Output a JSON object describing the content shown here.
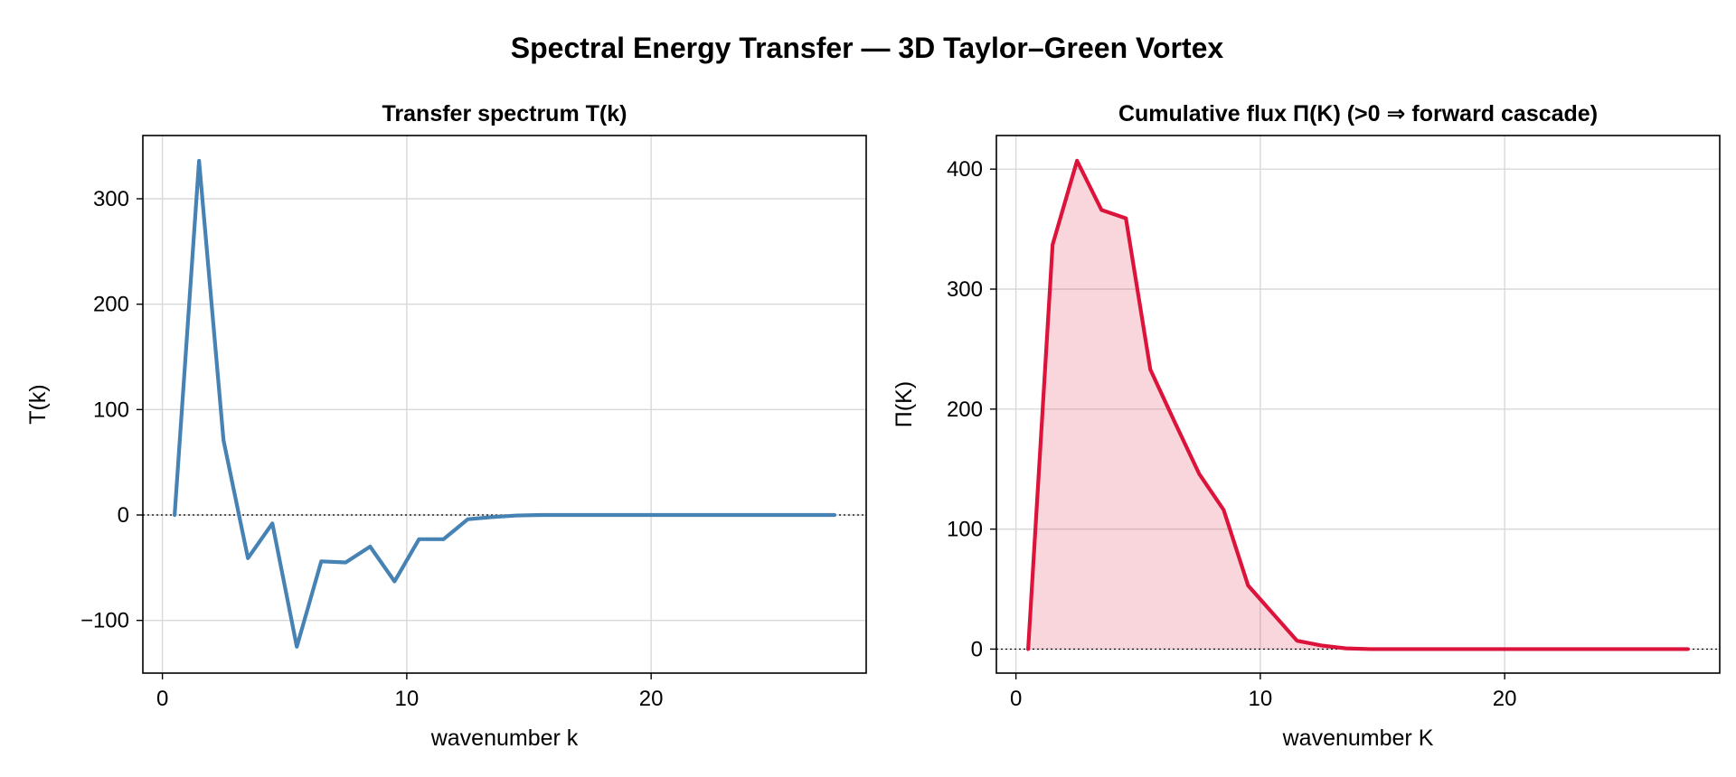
{
  "figure_title": "Spectral Energy Transfer — 3D Taylor–Green Vortex",
  "chart_data": [
    {
      "type": "line",
      "title": "Transfer spectrum T(k)",
      "xlabel": "wavenumber k",
      "ylabel": "T(k)",
      "xlim": [
        -0.8,
        28.8
      ],
      "ylim": [
        -150,
        360
      ],
      "xticks": [
        0,
        10,
        20
      ],
      "xtick_labels": [
        "0",
        "10",
        "20"
      ],
      "yticks": [
        -100,
        0,
        100,
        200,
        300
      ],
      "ytick_labels": [
        "−100",
        "0",
        "100",
        "200",
        "300"
      ],
      "grid": true,
      "zero_line": true,
      "series": [
        {
          "color": "#4682b4",
          "fill": false,
          "x": [
            0.5,
            1.5,
            2.5,
            3.5,
            4.5,
            5.5,
            6.5,
            7.5,
            8.5,
            9.5,
            10.5,
            11.5,
            12.5,
            13.5,
            14.5,
            15.5,
            16.5,
            17.5,
            18.5,
            19.5,
            20.5,
            21.5,
            22.5,
            23.5,
            24.5,
            25.5,
            26.5,
            27.5
          ],
          "y": [
            0,
            336,
            71,
            -41,
            -8,
            -125,
            -44,
            -45,
            -30,
            -63,
            -23,
            -23,
            -4,
            -2,
            -0.5,
            0,
            0,
            0,
            0,
            0,
            0,
            0,
            0,
            0,
            0,
            0,
            0,
            0
          ]
        }
      ]
    },
    {
      "type": "area",
      "title": "Cumulative flux Π(K)  (>0 ⇒ forward cascade)",
      "xlabel": "wavenumber K",
      "ylabel": "Π(K)",
      "xlim": [
        -0.8,
        28.8
      ],
      "ylim": [
        -20,
        428
      ],
      "xticks": [
        0,
        10,
        20
      ],
      "xtick_labels": [
        "0",
        "10",
        "20"
      ],
      "yticks": [
        0,
        100,
        200,
        300,
        400
      ],
      "ytick_labels": [
        "0",
        "100",
        "200",
        "300",
        "400"
      ],
      "grid": true,
      "zero_line": true,
      "series": [
        {
          "color": "#dc143c",
          "fill": true,
          "fill_color": "#dc143c",
          "fill_opacity": 0.18,
          "x": [
            0.5,
            1.5,
            2.5,
            3.5,
            4.5,
            5.5,
            6.5,
            7.5,
            8.5,
            9.5,
            10.5,
            11.5,
            12.5,
            13.5,
            14.5,
            15.5,
            16.5,
            17.5,
            18.5,
            19.5,
            20.5,
            21.5,
            22.5,
            23.5,
            24.5,
            25.5,
            26.5,
            27.5
          ],
          "y": [
            0,
            337,
            407,
            366,
            359,
            233,
            189,
            146,
            116,
            53,
            30,
            7,
            3,
            0.6,
            0,
            0,
            0,
            0,
            0,
            0,
            0,
            0,
            0,
            0,
            0,
            0,
            0,
            0
          ]
        }
      ]
    }
  ]
}
